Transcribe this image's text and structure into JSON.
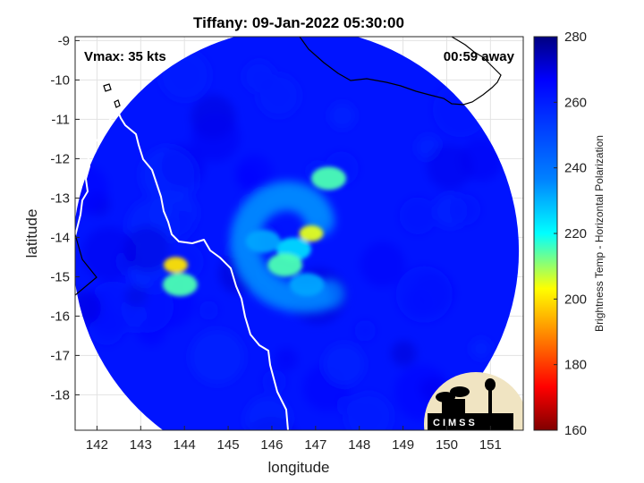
{
  "chart_data": {
    "type": "heatmap",
    "title": "Tiffany: 09-Jan-2022 05:30:00",
    "xlabel": "longitude",
    "ylabel": "latitude",
    "xlim": [
      141.5,
      151.75
    ],
    "ylim": [
      -18.9,
      -8.9
    ],
    "xticks": [
      142,
      143,
      144,
      145,
      146,
      147,
      148,
      149,
      150,
      151
    ],
    "yticks": [
      -9,
      -10,
      -11,
      -12,
      -13,
      -14,
      -15,
      -16,
      -17,
      -18
    ],
    "grid": true,
    "colorbar": {
      "label": "Brightness Temp - Horizontal Polarization",
      "range": [
        160,
        280
      ],
      "ticks": [
        280,
        260,
        240,
        220,
        200,
        180,
        160
      ],
      "colormap": "jet"
    },
    "swath": {
      "center": [
        146.55,
        -14.35
      ],
      "radius_deg": 5.1
    },
    "background_temp": 262,
    "features": [
      {
        "name": "eyewall-north-arm",
        "lon": 147.3,
        "lat": -12.5,
        "temp": 215
      },
      {
        "name": "core-north",
        "lon": 146.9,
        "lat": -13.9,
        "temp": 205
      },
      {
        "name": "core-center",
        "lon": 146.5,
        "lat": -14.3,
        "temp": 225
      },
      {
        "name": "core-south",
        "lon": 146.3,
        "lat": -14.7,
        "temp": 215
      },
      {
        "name": "band-west",
        "lon": 145.8,
        "lat": -14.1,
        "temp": 232
      },
      {
        "name": "band-south",
        "lon": 146.8,
        "lat": -15.2,
        "temp": 232
      },
      {
        "name": "cell-coast-1",
        "lon": 143.8,
        "lat": -14.7,
        "temp": 200
      },
      {
        "name": "cell-coast-2",
        "lon": 143.9,
        "lat": -15.2,
        "temp": 215
      }
    ],
    "annotations": {
      "vmax": "Vmax: 35 kts",
      "away": "00:59 away"
    }
  },
  "logo": {
    "text": "CIMSS"
  }
}
